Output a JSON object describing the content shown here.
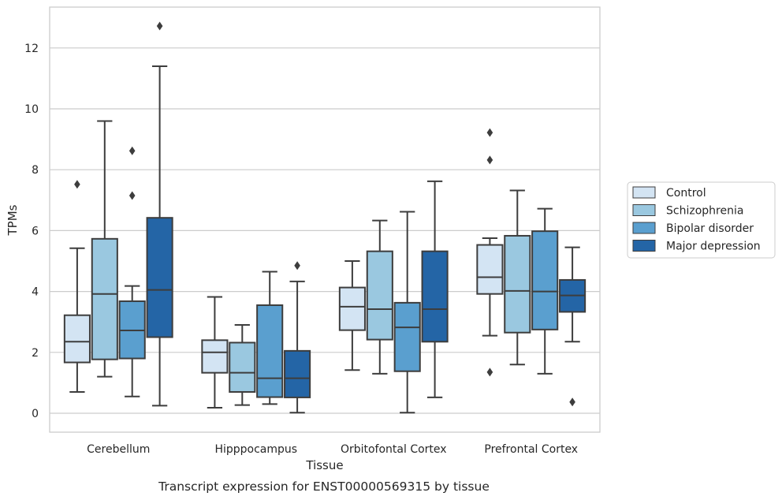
{
  "caption": "Transcript expression for ENST00000569315 by tissue",
  "chart_data": {
    "type": "boxplot",
    "xlabel": "Tissue",
    "ylabel": "TPMs",
    "ylim": [
      -0.6,
      13.3
    ],
    "yticks": [
      0,
      2,
      4,
      6,
      8,
      10,
      12
    ],
    "grid": "horizontal",
    "legend_position": "right",
    "categories": [
      "Cerebellum",
      "Hipppocampus",
      "Orbitofontal Cortex",
      "Prefrontal Cortex"
    ],
    "series": [
      {
        "name": "Control",
        "color": "#d3e4f3",
        "boxes": [
          {
            "whisker_low": 0.7,
            "q1": 1.67,
            "median": 2.35,
            "q3": 3.22,
            "whisker_high": 5.42,
            "outliers": [
              7.52
            ]
          },
          {
            "whisker_low": 0.18,
            "q1": 1.33,
            "median": 2.0,
            "q3": 2.4,
            "whisker_high": 3.82,
            "outliers": []
          },
          {
            "whisker_low": 1.42,
            "q1": 2.73,
            "median": 3.5,
            "q3": 4.13,
            "whisker_high": 5.0,
            "outliers": []
          },
          {
            "whisker_low": 2.55,
            "q1": 3.92,
            "median": 4.47,
            "q3": 5.53,
            "whisker_high": 5.75,
            "outliers": [
              9.22,
              8.32,
              1.35
            ]
          }
        ]
      },
      {
        "name": "Schizophrenia",
        "color": "#9ac8e0",
        "boxes": [
          {
            "whisker_low": 1.2,
            "q1": 1.77,
            "median": 3.92,
            "q3": 5.73,
            "whisker_high": 9.6,
            "outliers": []
          },
          {
            "whisker_low": 0.27,
            "q1": 0.7,
            "median": 1.33,
            "q3": 2.32,
            "whisker_high": 2.9,
            "outliers": []
          },
          {
            "whisker_low": 1.3,
            "q1": 2.42,
            "median": 3.42,
            "q3": 5.32,
            "whisker_high": 6.33,
            "outliers": []
          },
          {
            "whisker_low": 1.6,
            "q1": 2.65,
            "median": 4.02,
            "q3": 5.83,
            "whisker_high": 7.32,
            "outliers": []
          }
        ]
      },
      {
        "name": "Bipolar disorder",
        "color": "#5a9fcf",
        "boxes": [
          {
            "whisker_low": 0.55,
            "q1": 1.8,
            "median": 2.72,
            "q3": 3.68,
            "whisker_high": 4.18,
            "outliers": [
              8.62,
              7.15
            ]
          },
          {
            "whisker_low": 0.3,
            "q1": 0.53,
            "median": 1.15,
            "q3": 3.55,
            "whisker_high": 4.65,
            "outliers": []
          },
          {
            "whisker_low": 0.02,
            "q1": 1.38,
            "median": 2.82,
            "q3": 3.63,
            "whisker_high": 6.62,
            "outliers": []
          },
          {
            "whisker_low": 1.3,
            "q1": 2.75,
            "median": 4.0,
            "q3": 5.98,
            "whisker_high": 6.72,
            "outliers": []
          }
        ]
      },
      {
        "name": "Major depression",
        "color": "#2465a6",
        "boxes": [
          {
            "whisker_low": 0.25,
            "q1": 2.5,
            "median": 4.05,
            "q3": 6.42,
            "whisker_high": 11.4,
            "outliers": [
              12.72
            ]
          },
          {
            "whisker_low": 0.02,
            "q1": 0.52,
            "median": 1.15,
            "q3": 2.05,
            "whisker_high": 4.33,
            "outliers": [
              4.85
            ]
          },
          {
            "whisker_low": 0.52,
            "q1": 2.35,
            "median": 3.42,
            "q3": 5.32,
            "whisker_high": 7.62,
            "outliers": []
          },
          {
            "whisker_low": 2.35,
            "q1": 3.33,
            "median": 3.87,
            "q3": 4.38,
            "whisker_high": 5.45,
            "outliers": [
              0.37
            ]
          }
        ]
      }
    ]
  }
}
